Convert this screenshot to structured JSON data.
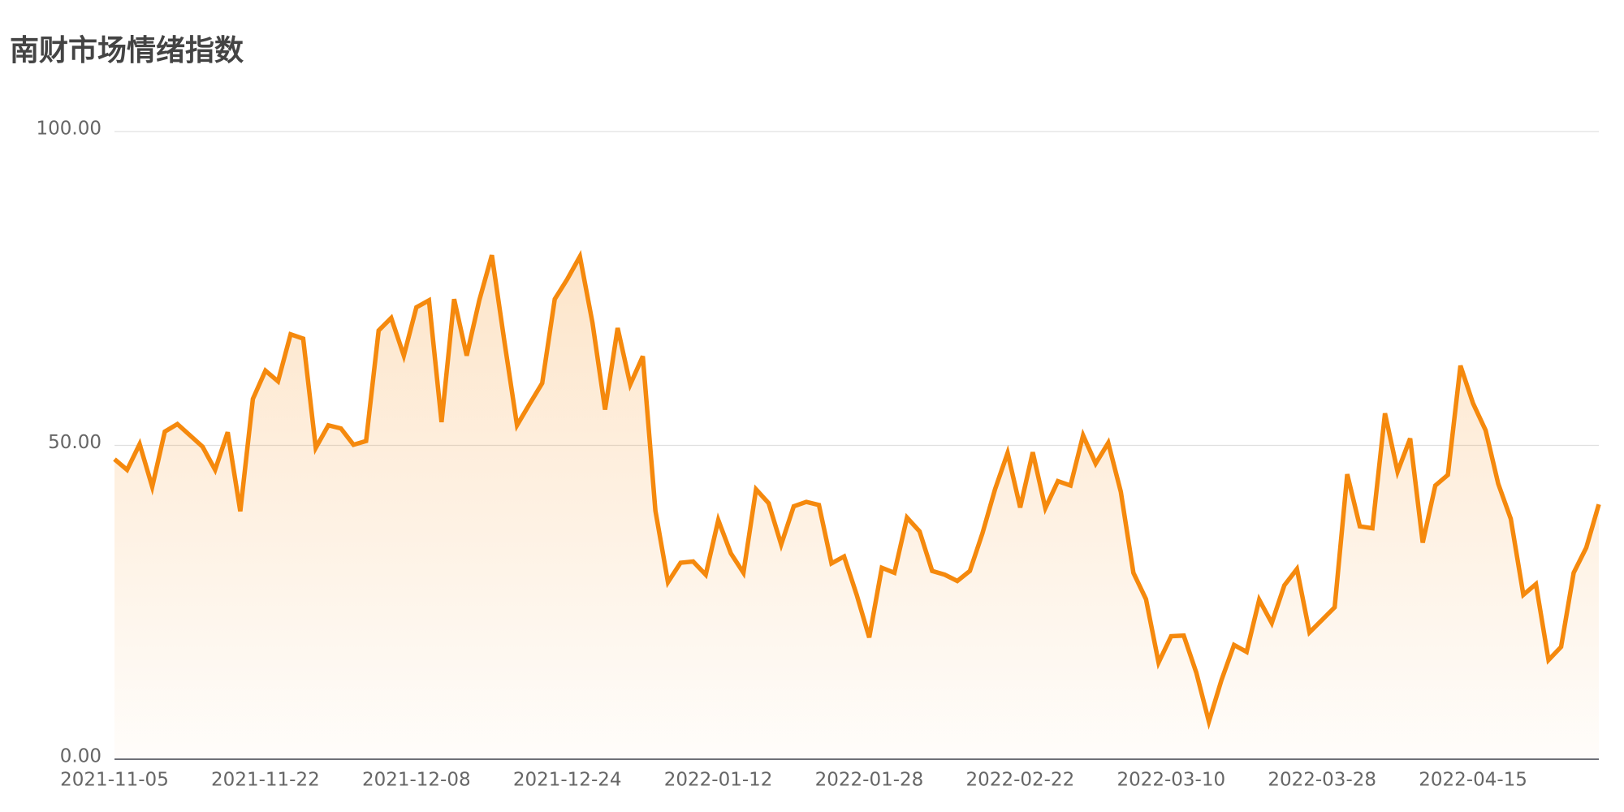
{
  "chart_data": {
    "type": "line",
    "title": "南财市场情绪指数",
    "categories": [
      "2021-11-05",
      null,
      null,
      null,
      null,
      null,
      null,
      null,
      null,
      null,
      null,
      null,
      "2021-11-22",
      null,
      null,
      null,
      null,
      null,
      null,
      null,
      null,
      null,
      null,
      null,
      "2021-12-08",
      null,
      null,
      null,
      null,
      null,
      null,
      null,
      null,
      null,
      null,
      null,
      "2021-12-24",
      null,
      null,
      null,
      null,
      null,
      null,
      null,
      null,
      null,
      null,
      null,
      "2022-01-12",
      null,
      null,
      null,
      null,
      null,
      null,
      null,
      null,
      null,
      null,
      null,
      "2022-01-28",
      null,
      null,
      null,
      null,
      null,
      null,
      null,
      null,
      null,
      null,
      null,
      "2022-02-22",
      null,
      null,
      null,
      null,
      null,
      null,
      null,
      null,
      null,
      null,
      null,
      "2022-03-10",
      null,
      null,
      null,
      null,
      null,
      null,
      null,
      null,
      null,
      null,
      null,
      "2022-03-28",
      null,
      null,
      null,
      null,
      null,
      null,
      null,
      null,
      null,
      null,
      null,
      "2022-04-15",
      null,
      null,
      null,
      null,
      null,
      null,
      null,
      null,
      null,
      null
    ],
    "values": [
      47.8,
      46.1,
      50.2,
      43.4,
      52.2,
      53.4,
      51.6,
      49.8,
      46.1,
      52.1,
      39.5,
      57.4,
      61.9,
      60.2,
      67.7,
      67.0,
      49.6,
      53.2,
      52.7,
      50.1,
      50.7,
      68.3,
      70.3,
      64.3,
      72.0,
      73.1,
      53.7,
      73.3,
      64.3,
      73.1,
      80.3,
      66.5,
      53.2,
      56.6,
      59.9,
      73.3,
      76.5,
      80.1,
      69.5,
      55.7,
      68.7,
      59.7,
      64.2,
      39.6,
      28.2,
      31.3,
      31.5,
      29.4,
      38.1,
      32.8,
      29.7,
      43.0,
      40.8,
      34.2,
      40.3,
      41.0,
      40.5,
      31.2,
      32.3,
      26.2,
      19.4,
      30.5,
      29.7,
      38.5,
      36.3,
      30.0,
      29.4,
      28.4,
      30.0,
      36.0,
      43.0,
      48.8,
      40.1,
      48.9,
      40.0,
      44.3,
      43.6,
      51.6,
      47.1,
      50.4,
      42.6,
      29.7,
      25.5,
      15.4,
      19.6,
      19.7,
      13.8,
      6.0,
      12.6,
      18.2,
      17.1,
      25.4,
      21.7,
      27.7,
      30.3,
      20.2,
      22.2,
      24.2,
      45.4,
      37.1,
      36.8,
      55.1,
      45.8,
      51.1,
      34.5,
      43.6,
      45.3,
      62.7,
      56.7,
      52.4,
      43.9,
      38.3,
      26.2,
      27.9,
      15.8,
      17.9,
      29.7,
      33.7,
      40.6
    ],
    "color": "#f5890d",
    "ylim": [
      0,
      100
    ],
    "yticks": [
      {
        "value": 0,
        "label": "0.00"
      },
      {
        "value": 50,
        "label": "50.00"
      },
      {
        "value": 100,
        "label": "100.00"
      }
    ],
    "grid": true
  }
}
